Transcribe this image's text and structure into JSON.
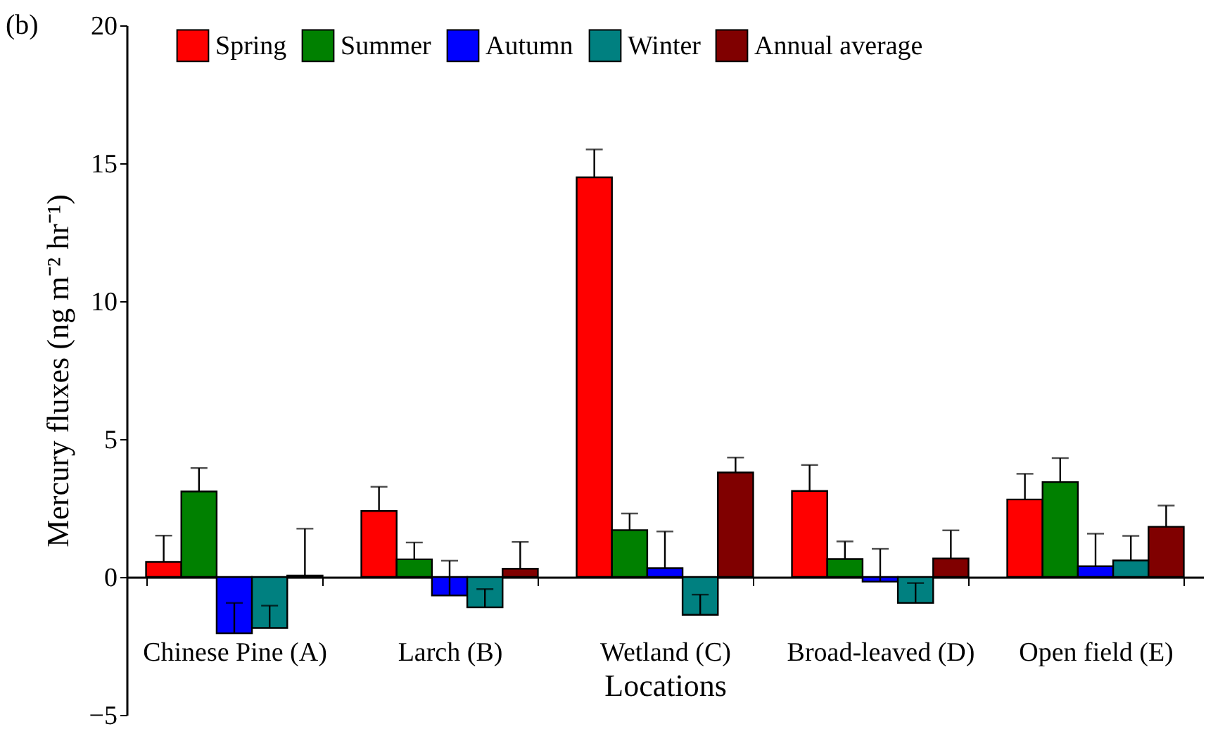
{
  "chart_data": {
    "type": "bar",
    "title": "(b)",
    "xlabel": "Locations",
    "ylabel": "Mercury fluxes (ng m⁻² hr⁻¹)",
    "categories": [
      "Chinese Pine (A)",
      "Larch (B)",
      "Wetland (C)",
      "Broad-leaved (D)",
      "Open field (E)"
    ],
    "series": [
      {
        "name": "Spring",
        "color": "#ff0000",
        "values": [
          0.55,
          2.39,
          14.49,
          3.12,
          2.81
        ],
        "errors": [
          [
            0.55,
            1.5
          ],
          [
            2.39,
            3.27
          ],
          [
            14.49,
            15.5
          ],
          [
            3.12,
            4.06
          ],
          [
            2.81,
            3.74
          ]
        ]
      },
      {
        "name": "Summer",
        "color": "#008000",
        "values": [
          3.1,
          0.64,
          1.7,
          0.65,
          3.44
        ],
        "errors": [
          [
            3.1,
            3.95
          ],
          [
            0.64,
            1.25
          ],
          [
            1.7,
            2.3
          ],
          [
            0.65,
            1.29
          ],
          [
            3.44,
            4.31
          ]
        ]
      },
      {
        "name": "Autumn",
        "color": "#0000ff",
        "values": [
          -2.04,
          -0.67,
          0.32,
          -0.17,
          0.39
        ],
        "errors": [
          [
            -2.04,
            -0.94
          ],
          [
            -0.67,
            0.59
          ],
          [
            0.32,
            1.65
          ],
          [
            -0.17,
            1.02
          ],
          [
            0.39,
            1.57
          ]
        ]
      },
      {
        "name": "Winter",
        "color": "#008080",
        "values": [
          -1.85,
          -1.1,
          -1.37,
          -0.94,
          0.6
        ],
        "errors": [
          [
            -1.85,
            -1.04
          ],
          [
            -1.1,
            -0.44
          ],
          [
            -1.37,
            -0.64
          ],
          [
            -0.94,
            -0.22
          ],
          [
            0.6,
            1.49
          ]
        ]
      },
      {
        "name": "Annual average",
        "color": "#800000",
        "values": [
          0.05,
          0.3,
          3.79,
          0.67,
          1.82
        ],
        "errors": [
          [
            0.05,
            1.75
          ],
          [
            0.3,
            1.27
          ],
          [
            3.79,
            4.33
          ],
          [
            0.67,
            1.69
          ],
          [
            1.82,
            2.59
          ]
        ]
      }
    ],
    "ylim": [
      -5,
      20
    ],
    "yticks": [
      -5,
      0,
      5,
      10,
      15,
      20
    ],
    "grid": false,
    "legend": "top"
  }
}
